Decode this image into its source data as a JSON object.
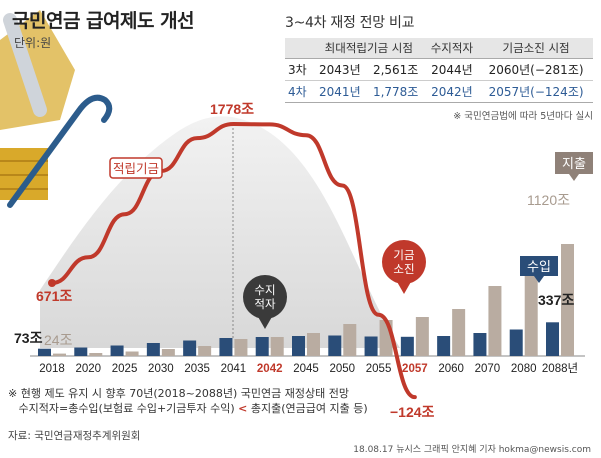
{
  "title": "국민연금 급여제도 개선",
  "unit": "단위:원",
  "comparison_table": {
    "title": "3~4차 재정 전망 비교",
    "headers": [
      "",
      "최대적립기금 시점",
      "수지적자",
      "기금소진 시점"
    ],
    "rows": [
      {
        "label": "3차",
        "max_fund_year": "2043년",
        "max_fund_value": "2,561조",
        "deficit_year": "2044년",
        "depletion": "2060년(−281조)"
      },
      {
        "label": "4차",
        "max_fund_year": "2041년",
        "max_fund_value": "1,778조",
        "deficit_year": "2042년",
        "depletion": "2057년(−124조)"
      }
    ],
    "note": "※ 국민연금법에 따라 5년마다 실시"
  },
  "chart_data": {
    "type": "bar",
    "categories": [
      "2018",
      "2020",
      "2025",
      "2030",
      "2035",
      "2041",
      "2042",
      "2045",
      "2050",
      "2055",
      "2057",
      "2060",
      "2070",
      "2080",
      "2088년"
    ],
    "highlighted_categories": [
      "2042",
      "2057"
    ],
    "series": [
      {
        "name": "수입",
        "kind": "bar",
        "color": "#2a4d78",
        "values": [
          73,
          85,
          105,
          130,
          155,
          180,
          190,
          200,
          205,
          195,
          192,
          200,
          230,
          265,
          337
        ]
      },
      {
        "name": "지출",
        "kind": "bar",
        "color": "#b9aca1",
        "values": [
          24,
          30,
          45,
          70,
          100,
          170,
          190,
          230,
          320,
          360,
          390,
          470,
          700,
          900,
          1120
        ]
      },
      {
        "name": "적립기금",
        "kind": "line",
        "color": "#c0392b",
        "values": [
          671,
          850,
          1150,
          1450,
          1680,
          1778,
          1775,
          1700,
          1350,
          450,
          -124,
          null,
          null,
          null,
          null
        ]
      }
    ],
    "data_labels": [
      {
        "text": "73조",
        "category": "2018",
        "series": "수입"
      },
      {
        "text": "24조",
        "category": "2018",
        "series": "지출"
      },
      {
        "text": "671조",
        "category": "2018",
        "series": "적립기금"
      },
      {
        "text": "1778조",
        "category": "2041",
        "series": "적립기금"
      },
      {
        "text": "−124조",
        "category": "2057",
        "series": "적립기금"
      },
      {
        "text": "337조",
        "category": "2088년",
        "series": "수입"
      },
      {
        "text": "1120조",
        "category": "2088년",
        "series": "지출"
      }
    ],
    "annotations": {
      "fund_line": "적립기금",
      "deficit_bubble": [
        "수지",
        "적자"
      ],
      "depletion_bubble": [
        "기금",
        "소진"
      ],
      "income_tag": "수입",
      "expense_tag": "지출"
    },
    "ylim": [
      -200,
      1900
    ],
    "grid": false
  },
  "footnote": {
    "line1": "※ 현행 제도 유지 시 향후 70년(2018~2088년) 국민연금 재정상태 전망",
    "line2_a": "수지적자=총수입(보험료 수입+기금투자 수익)",
    "line2_lt": "<",
    "line2_b": "총지출(연금급여 지출 등)"
  },
  "source": "자료: 국민연금재정추계위원회",
  "credit": "18.08.17 뉴시스 그래픽 안지혜 기자 hokma@newsis.com",
  "colors": {
    "accent_red": "#c0392b",
    "bar_income": "#2a4d78",
    "bar_expense": "#b9aca1",
    "hill": "#ececec",
    "coin_gold": "#d9a92a",
    "cane_blue": "#2c5c8c"
  }
}
